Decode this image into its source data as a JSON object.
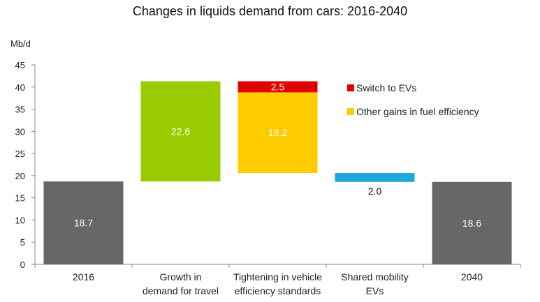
{
  "chart_data": {
    "type": "bar",
    "subtype": "waterfall",
    "title": "Changes in liquids demand from cars: 2016-2040",
    "ylabel": "Mb/d",
    "xlabel": "",
    "ylim": [
      0,
      45
    ],
    "yticks": [
      0,
      5,
      10,
      15,
      20,
      25,
      30,
      35,
      40,
      45
    ],
    "grid": false,
    "categories": [
      [
        "2016"
      ],
      [
        "Growth in",
        "demand for travel"
      ],
      [
        "Tightening in vehicle",
        "efficiency standards"
      ],
      [
        "Shared mobility",
        "EVs"
      ],
      [
        "2040"
      ]
    ],
    "bars": [
      {
        "category_index": 0,
        "base": 0,
        "value": 18.7,
        "label": "18.7",
        "color": "#676767",
        "label_color": "#ffffff",
        "label_position": "inside"
      },
      {
        "category_index": 1,
        "base": 18.7,
        "value": 22.6,
        "label": "22.6",
        "color": "#99cc00",
        "label_color": "#ffffff",
        "label_position": "inside"
      },
      {
        "category_index": 2,
        "base": 20.6,
        "value": 18.2,
        "label": "18.2",
        "color": "#ffcc00",
        "label_color": "#ffffff",
        "label_position": "inside",
        "series": "Other gains in fuel efficiency"
      },
      {
        "category_index": 2,
        "base": 38.8,
        "value": 2.5,
        "label": "2.5",
        "color": "#e00000",
        "label_color": "#ffffff",
        "label_position": "inside",
        "series": "Switch to EVs"
      },
      {
        "category_index": 3,
        "base": 18.6,
        "value": 2.0,
        "label": "2.0",
        "color": "#1ea8e0",
        "label_color": "#111111",
        "label_position": "below"
      },
      {
        "category_index": 4,
        "base": 0,
        "value": 18.6,
        "label": "18.6",
        "color": "#676767",
        "label_color": "#ffffff",
        "label_position": "inside"
      }
    ],
    "legend": {
      "placement": "right-middle",
      "items": [
        {
          "name": "Switch to EVs",
          "color": "#e00000"
        },
        {
          "name": "Other gains in fuel efficiency",
          "color": "#ffcc00"
        }
      ]
    }
  }
}
